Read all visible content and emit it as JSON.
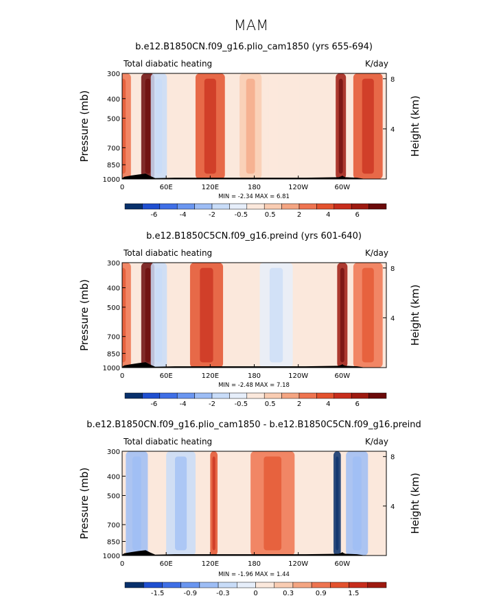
{
  "figure": {
    "title": "MAM"
  },
  "chart_data": [
    {
      "type": "heatmap",
      "title": "b.e12.B1850CN.f09_g16.plio_cam1850 (yrs 655-694)",
      "left_label": "Total diabatic heating",
      "right_label": "K/day",
      "ylabel": "Pressure (mb)",
      "ylabel_right": "Height (km)",
      "x_ticks": [
        "0",
        "60E",
        "120E",
        "180",
        "120W",
        "60W"
      ],
      "x_range": [
        0,
        360
      ],
      "y_ticks": [
        "300",
        "400",
        "500",
        "700",
        "850",
        "1000"
      ],
      "y_values": [
        300,
        400,
        500,
        700,
        850,
        1000
      ],
      "y_range": [
        300,
        1000
      ],
      "height_ticks": [
        "8",
        "4"
      ],
      "height_values": [
        8,
        4
      ],
      "stats": "MIN =   -2.34   MAX =    6.81",
      "colorbar_labels": [
        "-6",
        "-4",
        "-2",
        "-0.5",
        "0.5",
        "2",
        "4",
        "6"
      ],
      "colorbar_colors": [
        "#08306b",
        "#1f4fd0",
        "#3f6fe6",
        "#6a96f0",
        "#9dbdf5",
        "#c8dcf8",
        "#e6eefa",
        "#fbe8dc",
        "#f9ccb2",
        "#f4a582",
        "#ee7450",
        "#e3522e",
        "#c72d1c",
        "#9e1a10",
        "#6b0a0a"
      ],
      "features": [
        {
          "lon": 0,
          "width": 24,
          "value": 2.5
        },
        {
          "lon": 35,
          "width": 18,
          "value": 6.0
        },
        {
          "lon": 50,
          "width": 22,
          "value": -1.5
        },
        {
          "lon": 120,
          "width": 40,
          "value": 3.2
        },
        {
          "lon": 175,
          "width": 30,
          "value": 1.0
        },
        {
          "lon": 220,
          "width": 40,
          "value": -0.3
        },
        {
          "lon": 298,
          "width": 14,
          "value": 5.0
        },
        {
          "lon": 335,
          "width": 40,
          "value": 3.0
        }
      ]
    },
    {
      "type": "heatmap",
      "title": "b.e12.B1850C5CN.f09_g16.preind (yrs 601-640)",
      "left_label": "Total diabatic heating",
      "right_label": "K/day",
      "ylabel": "Pressure (mb)",
      "ylabel_right": "Height (km)",
      "x_ticks": [
        "0",
        "60E",
        "120E",
        "180",
        "120W",
        "60W"
      ],
      "x_range": [
        0,
        360
      ],
      "y_ticks": [
        "300",
        "400",
        "500",
        "700",
        "850",
        "1000"
      ],
      "y_values": [
        300,
        400,
        500,
        700,
        850,
        1000
      ],
      "y_range": [
        300,
        1000
      ],
      "height_ticks": [
        "8",
        "4"
      ],
      "height_values": [
        8,
        4
      ],
      "stats": "MIN =   -2.48   MAX =    7.18",
      "colorbar_labels": [
        "-6",
        "-4",
        "-2",
        "-0.5",
        "0.5",
        "2",
        "4",
        "6"
      ],
      "colorbar_colors": [
        "#08306b",
        "#1f4fd0",
        "#3f6fe6",
        "#6a96f0",
        "#9dbdf5",
        "#c8dcf8",
        "#e6eefa",
        "#fbe8dc",
        "#f9ccb2",
        "#f4a582",
        "#ee7450",
        "#e3522e",
        "#c72d1c",
        "#9e1a10",
        "#6b0a0a"
      ],
      "features": [
        {
          "lon": 0,
          "width": 24,
          "value": 2.5
        },
        {
          "lon": 35,
          "width": 18,
          "value": 6.5
        },
        {
          "lon": 50,
          "width": 22,
          "value": -1.6
        },
        {
          "lon": 115,
          "width": 45,
          "value": 3.5
        },
        {
          "lon": 210,
          "width": 45,
          "value": -1.2
        },
        {
          "lon": 300,
          "width": 14,
          "value": 5.5
        },
        {
          "lon": 335,
          "width": 40,
          "value": 3.2
        }
      ]
    },
    {
      "type": "heatmap",
      "title": "b.e12.B1850CN.f09_g16.plio_cam1850 - b.e12.B1850C5CN.f09_g16.preind",
      "left_label": "Total diabatic heating",
      "right_label": "K/day",
      "ylabel": "Pressure (mb)",
      "ylabel_right": "Height (km)",
      "x_ticks": [
        "0",
        "60E",
        "120E",
        "180",
        "120W",
        "60W"
      ],
      "x_range": [
        0,
        360
      ],
      "y_ticks": [
        "300",
        "400",
        "500",
        "700",
        "850",
        "1000"
      ],
      "y_values": [
        300,
        400,
        500,
        700,
        850,
        1000
      ],
      "y_range": [
        300,
        1000
      ],
      "height_ticks": [
        "8",
        "4"
      ],
      "height_values": [
        8,
        4
      ],
      "stats": "MIN =   -1.96   MAX =    1.44",
      "colorbar_labels": [
        "-1.5",
        "-0.9",
        "-0.3",
        "0",
        "0.3",
        "0.9",
        "1.5"
      ],
      "colorbar_colors": [
        "#08306b",
        "#1f4fd0",
        "#3f6fe6",
        "#6a96f0",
        "#9dbdf5",
        "#c8dcf8",
        "#e6eefa",
        "#fbe8dc",
        "#f9ccb2",
        "#f4a582",
        "#ee7450",
        "#e3522e",
        "#c72d1c",
        "#9e1a10"
      ],
      "features": [
        {
          "lon": 20,
          "width": 30,
          "value": -0.5
        },
        {
          "lon": 80,
          "width": 40,
          "value": -0.4
        },
        {
          "lon": 125,
          "width": 10,
          "value": 1.0
        },
        {
          "lon": 205,
          "width": 60,
          "value": 0.9
        },
        {
          "lon": 293,
          "width": 10,
          "value": -1.6
        },
        {
          "lon": 320,
          "width": 30,
          "value": -0.5
        }
      ]
    }
  ]
}
